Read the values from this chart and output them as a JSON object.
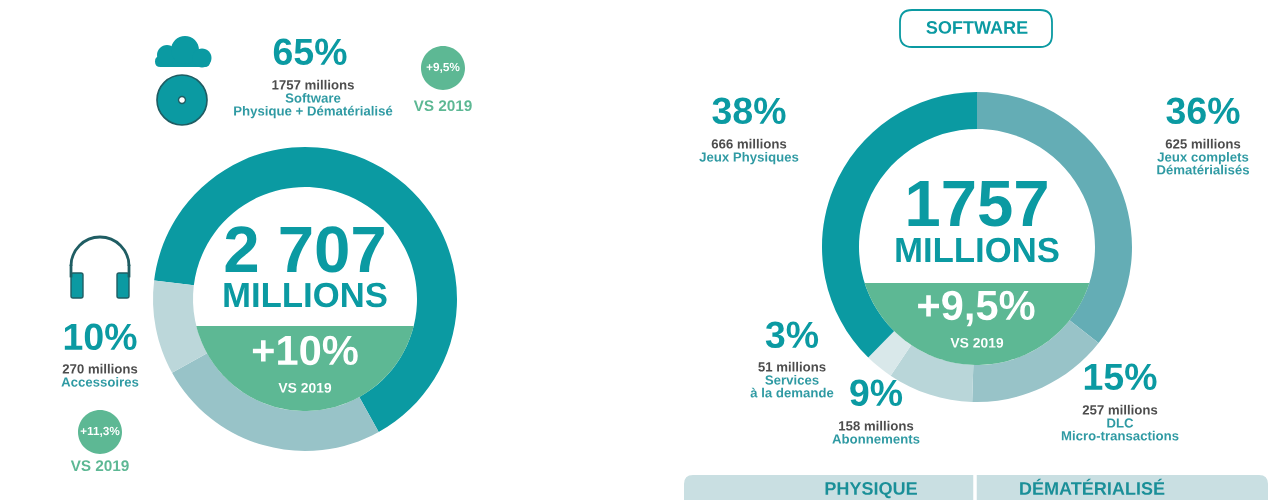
{
  "chart_data": [
    {
      "type": "donut",
      "categories": [
        "Software\nPhysique + Dématérialisé",
        null,
        "Accessoires"
      ],
      "values": [
        65,
        25,
        10
      ],
      "colors": [
        "#0b9aa2",
        "#98c3c8",
        "#bcd7da"
      ],
      "value_labels": [
        "65%",
        null,
        "10%"
      ],
      "annotations": [
        "1757 millions",
        "270 millions",
        "2 707",
        "MILLIONS",
        "+10%",
        "VS 2019",
        "+9,5%",
        "VS 2019",
        "+11,3%",
        "VS 2019"
      ]
    },
    {
      "type": "donut",
      "title": "SOFTWARE",
      "categories": [
        "Jeux complets\nDématérialisés",
        "DLC\nMicro-transactions",
        "Abonnements",
        "Services\nà la demande",
        "Jeux Physiques"
      ],
      "values": [
        36,
        15,
        9,
        3,
        38
      ],
      "colors": [
        "#64adb5",
        "#98c3c8",
        "#b9d6d9",
        "#d9e8ea",
        "#0b9aa2"
      ],
      "value_labels": [
        "36%",
        "15%",
        "9%",
        "3%",
        "38%"
      ],
      "annotations": [
        "625 millions",
        "257 millions",
        "158 millions",
        "51 millions",
        "666 millions",
        "1757",
        "MILLIONS",
        "+9,5%",
        "VS 2019",
        "PHYSIQUE",
        "DÉMATÉRIALISÉ"
      ]
    }
  ]
}
